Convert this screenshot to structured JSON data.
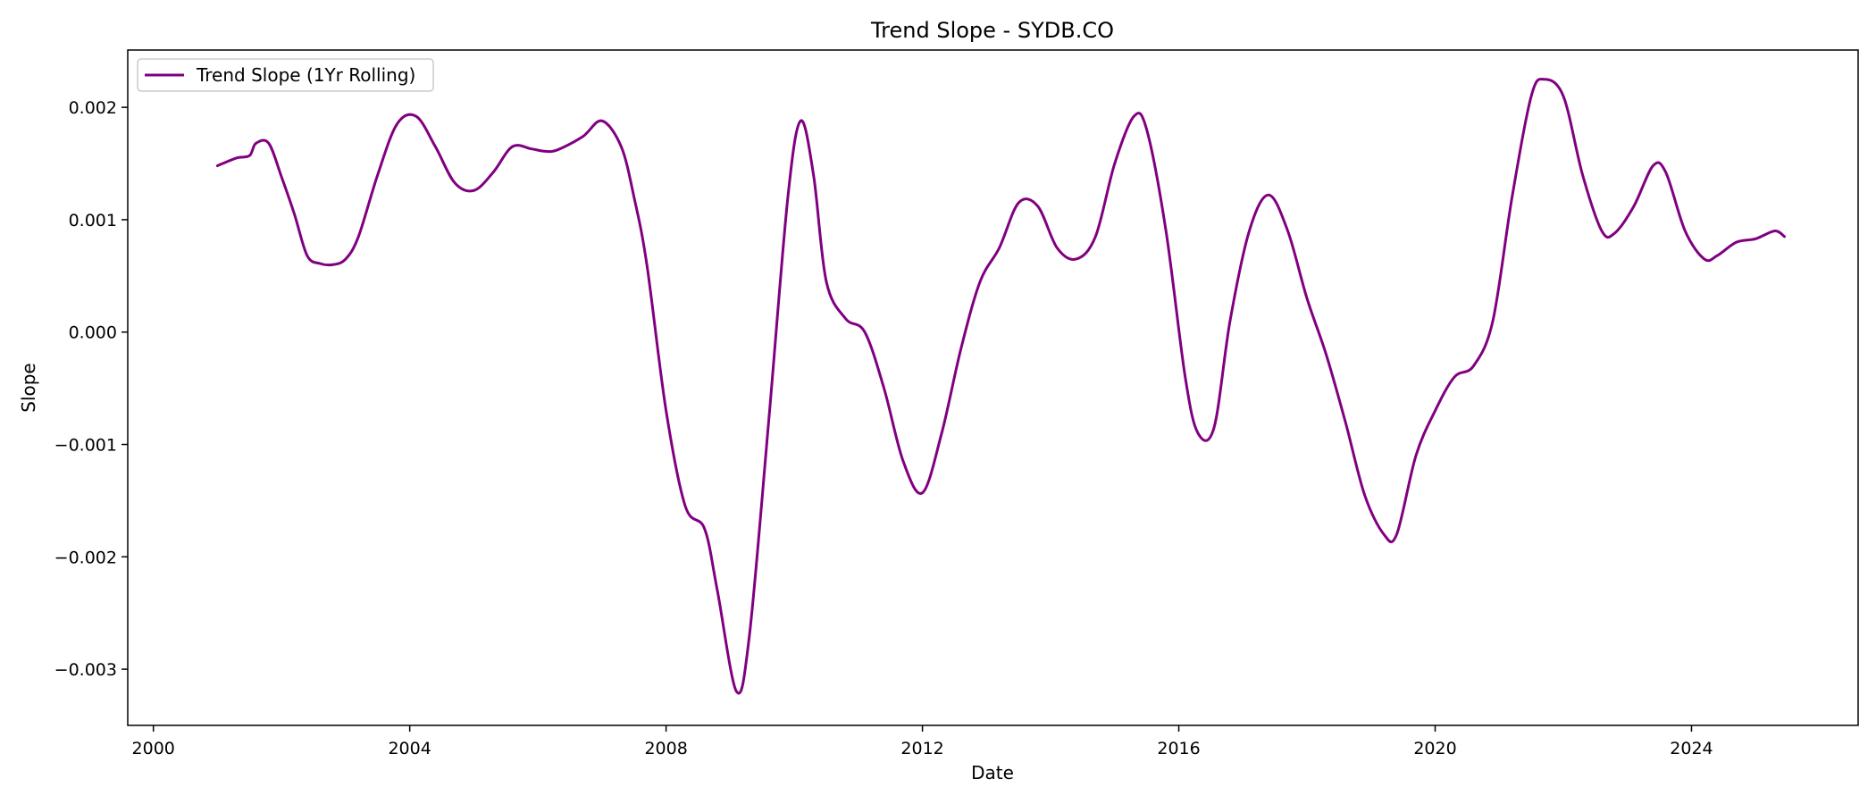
{
  "chart_data": {
    "type": "line",
    "title": "Trend Slope - SYDB.CO",
    "xlabel": "Date",
    "ylabel": "Slope",
    "xlim": [
      1999.6,
      2026.6
    ],
    "ylim": [
      -0.0035,
      0.00251
    ],
    "xticks": [
      2000,
      2004,
      2008,
      2012,
      2016,
      2020,
      2024
    ],
    "xtick_labels": [
      "2000",
      "2004",
      "2008",
      "2012",
      "2016",
      "2020",
      "2024"
    ],
    "yticks": [
      0.002,
      0.001,
      0.0,
      -0.001,
      -0.002,
      -0.003
    ],
    "ytick_labels": [
      "0.002",
      "0.001",
      "0.000",
      "−0.001",
      "−0.002",
      "−0.003"
    ],
    "grid": false,
    "legend_position": "top-left",
    "series": [
      {
        "name": "Trend Slope (1Yr Rolling)",
        "color": "#800080",
        "x": [
          2001.0,
          2001.3,
          2001.5,
          2001.6,
          2001.8,
          2002.0,
          2002.2,
          2002.4,
          2002.6,
          2002.8,
          2003.0,
          2003.2,
          2003.5,
          2003.8,
          2004.1,
          2004.4,
          2004.7,
          2005.0,
          2005.3,
          2005.6,
          2005.9,
          2006.1,
          2006.3,
          2006.7,
          2007.0,
          2007.3,
          2007.5,
          2007.7,
          2008.0,
          2008.3,
          2008.6,
          2008.8,
          2009.1,
          2009.3,
          2009.6,
          2009.9,
          2010.1,
          2010.3,
          2010.5,
          2010.8,
          2011.1,
          2011.4,
          2011.7,
          2012.0,
          2012.3,
          2012.6,
          2012.9,
          2013.2,
          2013.5,
          2013.8,
          2014.1,
          2014.4,
          2014.7,
          2015.0,
          2015.3,
          2015.5,
          2015.8,
          2016.1,
          2016.3,
          2016.55,
          2016.8,
          2017.1,
          2017.4,
          2017.7,
          2018.0,
          2018.3,
          2018.6,
          2018.9,
          2019.2,
          2019.4,
          2019.7,
          2020.0,
          2020.3,
          2020.6,
          2020.9,
          2021.2,
          2021.5,
          2021.7,
          2022.0,
          2022.3,
          2022.6,
          2022.8,
          2023.1,
          2023.4,
          2023.6,
          2023.9,
          2024.2,
          2024.4,
          2024.7,
          2025.0,
          2025.3,
          2025.45
        ],
        "y": [
          0.00148,
          0.00155,
          0.00157,
          0.00168,
          0.00168,
          0.00138,
          0.00105,
          0.00068,
          0.00061,
          0.0006,
          0.00065,
          0.00085,
          0.0014,
          0.00185,
          0.00192,
          0.00165,
          0.00133,
          0.00126,
          0.00142,
          0.00165,
          0.00163,
          0.00161,
          0.00162,
          0.00174,
          0.00188,
          0.00165,
          0.0012,
          0.0006,
          -0.0007,
          -0.00155,
          -0.00175,
          -0.0023,
          -0.0032,
          -0.0027,
          -0.0008,
          0.0012,
          0.00188,
          0.0014,
          0.00045,
          0.00012,
          0.0,
          -0.0005,
          -0.00115,
          -0.00143,
          -0.0009,
          -0.00015,
          0.00045,
          0.00075,
          0.00115,
          0.00112,
          0.00075,
          0.00065,
          0.00085,
          0.0015,
          0.00192,
          0.0018,
          0.0009,
          -0.0004,
          -0.0009,
          -0.00085,
          0.0001,
          0.0009,
          0.00122,
          0.0009,
          0.0003,
          -0.0002,
          -0.0008,
          -0.00145,
          -0.0018,
          -0.0018,
          -0.0011,
          -0.0007,
          -0.0004,
          -0.0003,
          0.0001,
          0.0012,
          0.0021,
          0.00225,
          0.0021,
          0.0014,
          0.0009,
          0.00088,
          0.00112,
          0.00148,
          0.00142,
          0.0009,
          0.00065,
          0.00068,
          0.0008,
          0.00083,
          0.0009,
          0.00085
        ]
      }
    ]
  }
}
